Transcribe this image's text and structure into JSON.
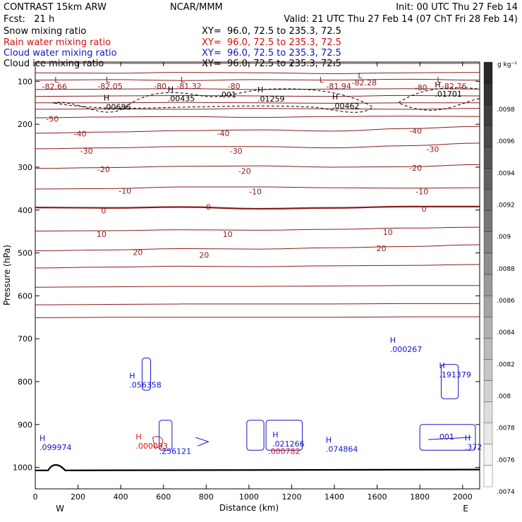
{
  "header": {
    "model": "CONTRAST 15km ARW",
    "center": "NCAR/MMM",
    "init": "Init: 00 UTC Thu 27 Feb 14",
    "fcst": "Fcst:   21 h",
    "valid": "Valid: 21 UTC Thu 27 Feb 14 (07 ChT Fri 28 Feb 14)"
  },
  "fields": [
    {
      "name": "Snow mixing ratio",
      "xy": "XY=  96.0, 72.5 to 235.3, 72.5",
      "color": "#000000"
    },
    {
      "name": "Rain water mixing ratio",
      "xy": "XY=  96.0, 72.5 to 235.3, 72.5",
      "color": "#d01010"
    },
    {
      "name": "Cloud water mixing ratio",
      "xy": "XY=  96.0, 72.5 to 235.3, 72.5",
      "color": "#1414c8"
    },
    {
      "name": "Cloud ice mixing ratio",
      "xy": "XY=  96.0, 72.5 to 235.3, 72.5",
      "color": "#000000"
    }
  ],
  "chart_data": {
    "type": "cross-section",
    "title": "CONTRAST 15km ARW",
    "xlabel": "Distance (km)",
    "ylabel": "Pressure (hPa)",
    "xlim": [
      0,
      2080
    ],
    "ylim": [
      1050,
      55
    ],
    "xticks": [
      0,
      200,
      400,
      600,
      800,
      1000,
      1200,
      1400,
      1600,
      1800,
      2000
    ],
    "yticks": [
      100,
      200,
      300,
      400,
      500,
      600,
      700,
      800,
      900,
      1000
    ],
    "x_ends": {
      "left": "W",
      "right": "E"
    },
    "colorbar": {
      "unit": "g kg⁻¹",
      "labels": [
        ".0098",
        ".0096",
        ".0094",
        ".0092",
        ".009",
        ".0088",
        ".0086",
        ".0084",
        ".0082",
        ".008",
        ".0078",
        ".0076",
        ".0074"
      ]
    },
    "temperature_contours": [
      {
        "value": -80,
        "label": "-80",
        "p": [
          58,
          58,
          58,
          58,
          58,
          58,
          58
        ]
      },
      {
        "value": -80,
        "label": "-80",
        "p": [
          80,
          81,
          79,
          80,
          82,
          80,
          79
        ]
      },
      {
        "value": -80,
        "label": "-80",
        "p": [
          97,
          96,
          98,
          96,
          97,
          95,
          97
        ]
      },
      {
        "value": -70,
        "label": "",
        "p": [
          119,
          118,
          117,
          119,
          118,
          117,
          118
        ]
      },
      {
        "value": -70,
        "label": "",
        "p": [
          135,
          134,
          133,
          134,
          135,
          133,
          134
        ]
      },
      {
        "value": -60,
        "label": "",
        "p": [
          150,
          150,
          149,
          150,
          151,
          150,
          150
        ]
      },
      {
        "value": -60,
        "label": "",
        "p": [
          165,
          164,
          165,
          163,
          164,
          165,
          163
        ]
      },
      {
        "value": -50,
        "label": "-50",
        "p": [
          185,
          183,
          182,
          184,
          182,
          181,
          182
        ]
      },
      {
        "value": -40,
        "label": "-40",
        "p": [
          221,
          218,
          215,
          213,
          216,
          210,
          205
        ]
      },
      {
        "value": -30,
        "label": "-30",
        "p": [
          257,
          255,
          252,
          252,
          255,
          250,
          244
        ]
      },
      {
        "value": -20,
        "label": "-20",
        "p": [
          303,
          301,
          298,
          297,
          300,
          299,
          294
        ]
      },
      {
        "value": -10,
        "label": "-10",
        "p": [
          351,
          350,
          346,
          346,
          348,
          349,
          348
        ]
      },
      {
        "value": 0,
        "label": "0",
        "p": [
          394,
          395,
          393,
          397,
          395,
          392,
          392
        ]
      },
      {
        "value": 10,
        "label": "10",
        "p": [
          449,
          448,
          446,
          447,
          445,
          442,
          440
        ]
      },
      {
        "value": 20,
        "label": "20",
        "p": [
          495,
          493,
          490,
          491,
          488,
          485,
          481
        ]
      },
      {
        "value": 20,
        "label": "",
        "p": [
          535,
          533,
          531,
          532,
          530,
          529,
          527
        ]
      },
      {
        "value": 30,
        "label": "",
        "p": [
          580,
          579,
          578,
          578,
          577,
          576,
          576
        ]
      },
      {
        "value": 40,
        "label": "",
        "p": [
          621,
          620,
          619,
          619,
          619,
          618,
          618
        ]
      },
      {
        "value": 50,
        "label": "",
        "p": [
          651,
          650,
          650,
          650,
          650,
          649,
          649
        ]
      }
    ],
    "contour_labels": [
      {
        "text": "-82.66",
        "x": 90,
        "p": 112,
        "color": "#8b1a1a"
      },
      {
        "text": "-82.05",
        "x": 350,
        "p": 111,
        "color": "#8b1a1a"
      },
      {
        "text": "-81.32",
        "x": 720,
        "p": 111,
        "color": "#8b1a1a"
      },
      {
        "text": "-81.94",
        "x": 1420,
        "p": 111,
        "color": "#8b1a1a"
      },
      {
        "text": "-82.28",
        "x": 1540,
        "p": 103,
        "color": "#8b1a1a"
      },
      {
        "text": "-82.76",
        "x": 1960,
        "p": 111,
        "color": "#8b1a1a"
      },
      {
        "text": "-80",
        "x": 585,
        "p": 111,
        "color": "#8b1a1a"
      },
      {
        "text": "-80",
        "x": 930,
        "p": 111,
        "color": "#8b1a1a"
      },
      {
        "text": "-80",
        "x": 1805,
        "p": 114,
        "color": "#8b1a1a"
      },
      {
        "text": "-50",
        "x": 80,
        "p": 187,
        "color": "#8b1a1a"
      },
      {
        "text": "-40",
        "x": 210,
        "p": 222,
        "color": "#8b1a1a"
      },
      {
        "text": "-40",
        "x": 880,
        "p": 221,
        "color": "#8b1a1a"
      },
      {
        "text": "-40",
        "x": 1780,
        "p": 215,
        "color": "#8b1a1a"
      },
      {
        "text": "-30",
        "x": 240,
        "p": 262,
        "color": "#8b1a1a"
      },
      {
        "text": "-30",
        "x": 940,
        "p": 262,
        "color": "#8b1a1a"
      },
      {
        "text": "-30",
        "x": 1860,
        "p": 258,
        "color": "#8b1a1a"
      },
      {
        "text": "-20",
        "x": 320,
        "p": 305,
        "color": "#8b1a1a"
      },
      {
        "text": "-20",
        "x": 980,
        "p": 309,
        "color": "#8b1a1a"
      },
      {
        "text": "-20",
        "x": 1780,
        "p": 302,
        "color": "#8b1a1a"
      },
      {
        "text": "-10",
        "x": 420,
        "p": 355,
        "color": "#8b1a1a"
      },
      {
        "text": "-10",
        "x": 1030,
        "p": 357,
        "color": "#8b1a1a"
      },
      {
        "text": "-10",
        "x": 1810,
        "p": 357,
        "color": "#8b1a1a"
      },
      {
        "text": "0",
        "x": 320,
        "p": 401,
        "color": "#8b1a1a"
      },
      {
        "text": "0",
        "x": 810,
        "p": 393,
        "color": "#8b1a1a"
      },
      {
        "text": "0",
        "x": 1820,
        "p": 397,
        "color": "#8b1a1a"
      },
      {
        "text": "10",
        "x": 310,
        "p": 456,
        "color": "#8b1a1a"
      },
      {
        "text": "10",
        "x": 900,
        "p": 456,
        "color": "#8b1a1a"
      },
      {
        "text": "10",
        "x": 1650,
        "p": 451,
        "color": "#8b1a1a"
      },
      {
        "text": "20",
        "x": 480,
        "p": 498,
        "color": "#8b1a1a"
      },
      {
        "text": "20",
        "x": 790,
        "p": 505,
        "color": "#8b1a1a"
      },
      {
        "text": "20",
        "x": 1620,
        "p": 489,
        "color": "#8b1a1a"
      }
    ],
    "snow_maxima": [
      {
        "label": "H",
        "value": ".00686",
        "x": 320,
        "p": 161
      },
      {
        "label": "H",
        "value": ".00435",
        "x": 620,
        "p": 141
      },
      {
        "label": "",
        "value": ".001",
        "x": 860,
        "p": 132
      },
      {
        "label": "H",
        "value": ".01259",
        "x": 1040,
        "p": 142
      },
      {
        "label": "H",
        "value": ".00462",
        "x": 1390,
        "p": 159
      },
      {
        "label": "H",
        "value": ".01701",
        "x": 1870,
        "p": 131
      }
    ],
    "low_markers": [
      {
        "text": "L",
        "x": 100,
        "p": 96
      },
      {
        "text": "L",
        "x": 340,
        "p": 96
      },
      {
        "text": "L",
        "x": 690,
        "p": 96
      },
      {
        "text": "L",
        "x": 1340,
        "p": 96
      },
      {
        "text": "L",
        "x": 1520,
        "p": 86
      },
      {
        "text": "L",
        "x": 1890,
        "p": 96
      }
    ],
    "cloud_water_maxima": [
      {
        "label": "H",
        "value": ".056358",
        "x": 440,
        "p": 809
      },
      {
        "label": "H",
        "value": ".099974",
        "x": 20,
        "p": 955
      },
      {
        "label": "",
        "value": ".256121",
        "x": 580,
        "p": 964
      },
      {
        "label": "H",
        "value": ".021266",
        "x": 1110,
        "p": 946
      },
      {
        "label": "H",
        "value": ".074864",
        "x": 1360,
        "p": 959
      },
      {
        "label": "H",
        "value": ".000267",
        "x": 1660,
        "p": 726
      },
      {
        "label": "H",
        "value": ".191379",
        "x": 1890,
        "p": 785
      },
      {
        "label": "",
        "value": ".001",
        "x": 1880,
        "p": 930
      },
      {
        "label": "H",
        "value": ".372",
        "x": 2010,
        "p": 954
      }
    ],
    "rain_water_maxima": [
      {
        "label": "H",
        "value": ".000093",
        "x": 470,
        "p": 951
      },
      {
        "label": "",
        "value": ".000782",
        "x": 1090,
        "p": 964
      }
    ],
    "terrain_pressure": 1007
  }
}
